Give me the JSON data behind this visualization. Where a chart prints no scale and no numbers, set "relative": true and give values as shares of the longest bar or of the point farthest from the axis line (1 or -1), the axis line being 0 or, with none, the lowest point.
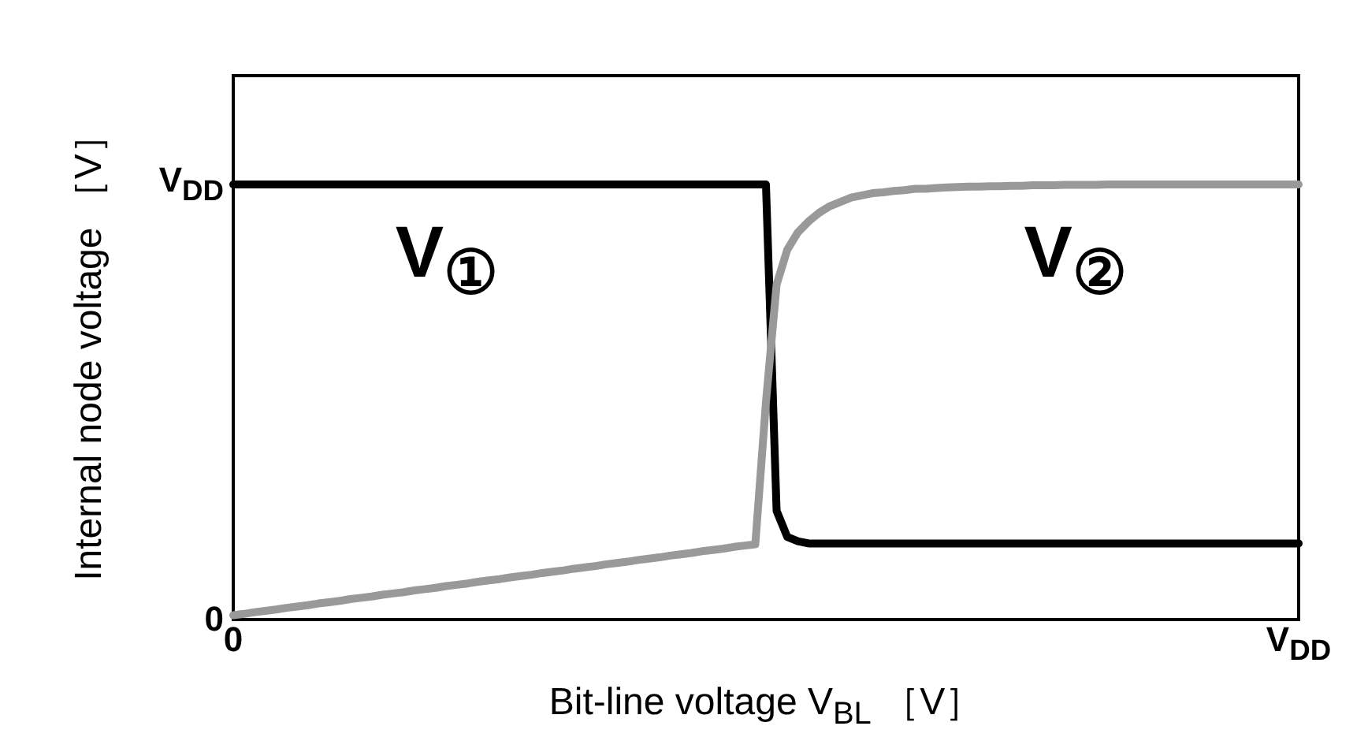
{
  "chart_data": {
    "type": "line",
    "relative": true,
    "xlabel": "Bit-line voltage V$_{BL}$ ［V］",
    "ylabel": "Internal node voltage ［V］",
    "categories": [
      "0",
      null,
      null,
      null,
      null,
      null,
      null,
      null,
      null,
      null,
      null,
      null,
      null,
      null,
      null,
      null,
      null,
      null,
      null,
      null,
      null,
      null,
      null,
      null,
      null,
      null,
      null,
      null,
      null,
      null,
      null,
      null,
      null,
      null,
      null,
      null,
      null,
      null,
      null,
      null,
      null,
      null,
      null,
      null,
      null,
      null,
      null,
      null,
      null,
      null,
      null,
      null,
      null,
      null,
      null,
      null,
      null,
      null,
      null,
      null,
      null,
      null,
      null,
      null,
      null,
      null,
      null,
      null,
      null,
      null,
      null,
      null,
      null,
      null,
      null,
      null,
      null,
      null,
      null,
      null,
      null,
      null,
      null,
      null,
      null,
      null,
      null,
      null,
      null,
      null,
      null,
      null,
      null,
      null,
      null,
      null,
      null,
      null,
      null,
      null,
      "V$_{DD}$"
    ],
    "grid": false,
    "legend": false,
    "marker": "none",
    "line_style": "solid",
    "series": [
      {
        "name": "V$_{①}$",
        "color": "#000000",
        "values": [
          1,
          1,
          1,
          1,
          1,
          1,
          1,
          1,
          1,
          1,
          1,
          1,
          1,
          1,
          1,
          1,
          1,
          1,
          1,
          1,
          1,
          1,
          1,
          1,
          1,
          1,
          1,
          1,
          1,
          1,
          1,
          1,
          1,
          1,
          1,
          1,
          1,
          1,
          1,
          1,
          1,
          1,
          1,
          1,
          1,
          1,
          1,
          1,
          1,
          1,
          1,
          0.25,
          0.19,
          0.18,
          0.175,
          0.175,
          0.175,
          0.175,
          0.175,
          0.175,
          0.175,
          0.175,
          0.175,
          0.175,
          0.175,
          0.175,
          0.175,
          0.175,
          0.175,
          0.175,
          0.175,
          0.175,
          0.175,
          0.175,
          0.175,
          0.175,
          0.175,
          0.175,
          0.175,
          0.175,
          0.175,
          0.175,
          0.175,
          0.175,
          0.175,
          0.175,
          0.175,
          0.175,
          0.175,
          0.175,
          0.175,
          0.175,
          0.175,
          0.175,
          0.175,
          0.175,
          0.175,
          0.175,
          0.175,
          0.175,
          0.175
        ]
      },
      {
        "name": "V$_{②}$",
        "color": "#999999",
        "values": [
          0.01,
          0.013,
          0.017,
          0.02,
          0.023,
          0.027,
          0.03,
          0.033,
          0.037,
          0.04,
          0.043,
          0.047,
          0.05,
          0.053,
          0.057,
          0.06,
          0.063,
          0.067,
          0.07,
          0.073,
          0.077,
          0.08,
          0.083,
          0.087,
          0.09,
          0.093,
          0.097,
          0.1,
          0.103,
          0.107,
          0.11,
          0.113,
          0.117,
          0.12,
          0.123,
          0.127,
          0.13,
          0.133,
          0.137,
          0.14,
          0.143,
          0.147,
          0.15,
          0.153,
          0.157,
          0.16,
          0.163,
          0.167,
          0.17,
          0.173,
          0.5,
          0.77,
          0.85,
          0.89,
          0.915,
          0.935,
          0.95,
          0.96,
          0.97,
          0.975,
          0.98,
          0.982,
          0.985,
          0.987,
          0.99,
          0.99,
          0.992,
          0.993,
          0.994,
          0.995,
          0.995,
          0.996,
          0.996,
          0.997,
          0.997,
          0.998,
          0.998,
          0.998,
          0.999,
          0.999,
          0.999,
          0.999,
          1,
          1,
          1,
          1,
          1,
          1,
          1,
          1,
          1,
          1,
          1,
          1,
          1,
          1,
          1,
          1,
          1,
          1,
          1
        ]
      }
    ],
    "annotations": [
      "0",
      "V$_{DD}$"
    ]
  }
}
